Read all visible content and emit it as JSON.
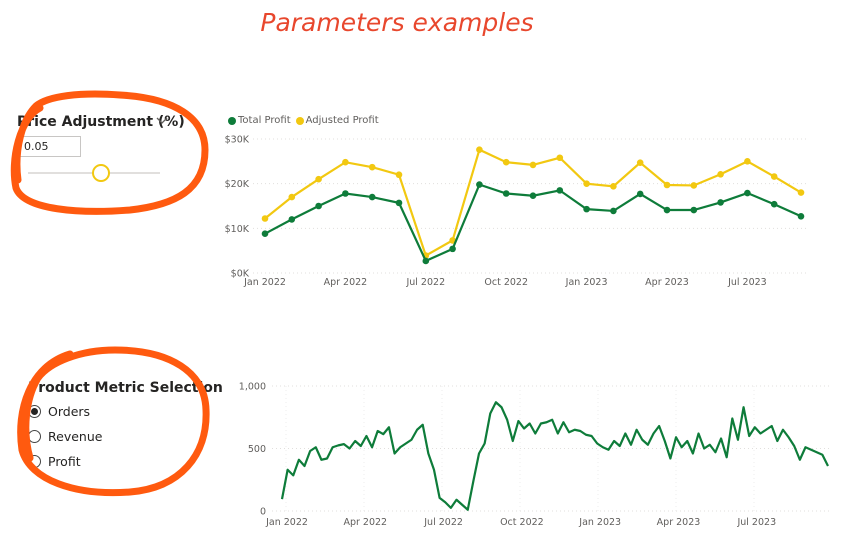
{
  "page": {
    "title": "Parameters examples"
  },
  "price_slicer": {
    "title": "Price Adjustment (%)",
    "value": "0.05",
    "slider_fraction": 0.55
  },
  "metric_slicer": {
    "title": "Product Metric Selection",
    "options": [
      {
        "label": "Orders",
        "selected": true
      },
      {
        "label": "Revenue",
        "selected": false
      },
      {
        "label": "Profit",
        "selected": false
      }
    ]
  },
  "colors": {
    "total_profit": "#0e7c3a",
    "adjusted_profit": "#f2c811",
    "annotation": "#ff5a0f",
    "title": "#e8472d"
  },
  "chart_data": [
    {
      "type": "line",
      "title": "",
      "xlabel": "",
      "ylabel": "",
      "x": [
        "Jan 2022",
        "Feb 2022",
        "Mar 2022",
        "Apr 2022",
        "May 2022",
        "Jun 2022",
        "Jul 2022",
        "Aug 2022",
        "Sep 2022",
        "Oct 2022",
        "Nov 2022",
        "Dec 2022",
        "Jan 2023",
        "Feb 2023",
        "Mar 2023",
        "Apr 2023",
        "May 2023",
        "Jun 2023",
        "Jul 2023",
        "Aug 2023",
        "Sep 2023"
      ],
      "x_tick_labels": [
        "Jan 2022",
        "Apr 2022",
        "Jul 2022",
        "Oct 2022",
        "Jan 2023",
        "Apr 2023",
        "Jul 2023"
      ],
      "y_tick_labels": [
        "$0K",
        "$10K",
        "$20K",
        "$30K"
      ],
      "ylim": [
        0,
        30000
      ],
      "legend": "top-left",
      "grid": true,
      "series": [
        {
          "name": "Total Profit",
          "values": [
            8800,
            12000,
            15000,
            17800,
            17000,
            15700,
            2700,
            5400,
            19800,
            17800,
            17300,
            18500,
            14300,
            13900,
            17700,
            14100,
            14100,
            15800,
            17900,
            15400,
            12700
          ]
        },
        {
          "name": "Adjusted Profit",
          "values": [
            12200,
            17000,
            21000,
            24800,
            23700,
            22000,
            3900,
            7300,
            27600,
            24800,
            24200,
            25800,
            20000,
            19400,
            24700,
            19700,
            19600,
            22100,
            25000,
            21600,
            18000
          ]
        }
      ]
    },
    {
      "type": "line",
      "title": "",
      "xlabel": "",
      "ylabel": "",
      "x_tick_labels": [
        "Jan 2022",
        "Apr 2022",
        "Jul 2022",
        "Oct 2022",
        "Jan 2023",
        "Apr 2023",
        "Jul 2023"
      ],
      "y_tick_labels": [
        "0",
        "500",
        "1,000"
      ],
      "ylim": [
        0,
        1000
      ],
      "grid": true,
      "series": [
        {
          "values": [
            95,
            330,
            285,
            410,
            360,
            480,
            510,
            410,
            420,
            510,
            525,
            535,
            500,
            560,
            520,
            600,
            510,
            640,
            615,
            670,
            460,
            510,
            540,
            570,
            650,
            690,
            460,
            330,
            105,
            70,
            25,
            90,
            50,
            10,
            240,
            460,
            540,
            780,
            870,
            830,
            730,
            560,
            720,
            660,
            700,
            620,
            700,
            710,
            730,
            620,
            710,
            630,
            650,
            640,
            610,
            600,
            540,
            510,
            490,
            560,
            520,
            620,
            530,
            650,
            570,
            530,
            620,
            680,
            560,
            420,
            590,
            510,
            560,
            460,
            620,
            500,
            530,
            470,
            580,
            430,
            740,
            570,
            830,
            600,
            670,
            620,
            650,
            680,
            560,
            650,
            590,
            520,
            410,
            510,
            490,
            470,
            450,
            360
          ]
        }
      ]
    }
  ]
}
